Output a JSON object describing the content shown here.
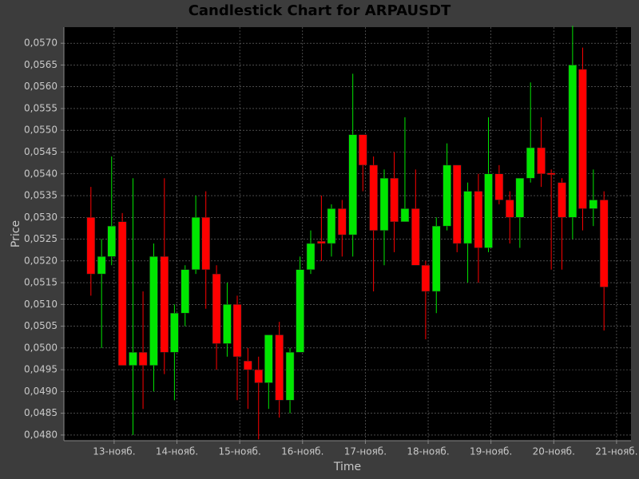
{
  "chart_data": {
    "type": "candlestick",
    "title": "Candlestick Chart for ARPAUSDT",
    "x_label": "Time",
    "y_label": "Price",
    "up_color": "#00e600",
    "down_color": "#ff0000",
    "grid": true,
    "xlim": [
      12.2,
      21.23
    ],
    "ylim": [
      0.04787,
      0.05737
    ],
    "xticks": [
      {
        "value": 13,
        "label": "13-нояб."
      },
      {
        "value": 14,
        "label": "14-нояб."
      },
      {
        "value": 15,
        "label": "15-нояб."
      },
      {
        "value": 16,
        "label": "16-нояб."
      },
      {
        "value": 17,
        "label": "17-нояб."
      },
      {
        "value": 18,
        "label": "18-нояб."
      },
      {
        "value": 19,
        "label": "19-нояб."
      },
      {
        "value": 20,
        "label": "20-нояб."
      },
      {
        "value": 21,
        "label": "21-нояб."
      }
    ],
    "yticks": [
      {
        "value": 0.048,
        "label": "0,0480"
      },
      {
        "value": 0.0485,
        "label": "0,0485"
      },
      {
        "value": 0.049,
        "label": "0,0490"
      },
      {
        "value": 0.0495,
        "label": "0,0495"
      },
      {
        "value": 0.05,
        "label": "0,0500"
      },
      {
        "value": 0.0505,
        "label": "0,0505"
      },
      {
        "value": 0.051,
        "label": "0,0510"
      },
      {
        "value": 0.0515,
        "label": "0,0515"
      },
      {
        "value": 0.052,
        "label": "0,0520"
      },
      {
        "value": 0.0525,
        "label": "0,0525"
      },
      {
        "value": 0.053,
        "label": "0,0530"
      },
      {
        "value": 0.0535,
        "label": "0,0535"
      },
      {
        "value": 0.054,
        "label": "0,0540"
      },
      {
        "value": 0.0545,
        "label": "0,0545"
      },
      {
        "value": 0.055,
        "label": "0,0550"
      },
      {
        "value": 0.0555,
        "label": "0,0555"
      },
      {
        "value": 0.056,
        "label": "0,0560"
      },
      {
        "value": 0.0565,
        "label": "0,0565"
      },
      {
        "value": 0.057,
        "label": "0,0570"
      }
    ],
    "x": [
      12.63,
      12.8,
      12.96,
      13.13,
      13.3,
      13.46,
      13.63,
      13.8,
      13.96,
      14.13,
      14.3,
      14.46,
      14.63,
      14.8,
      14.96,
      15.13,
      15.3,
      15.46,
      15.63,
      15.8,
      15.96,
      16.13,
      16.3,
      16.46,
      16.63,
      16.8,
      16.96,
      17.13,
      17.3,
      17.46,
      17.63,
      17.8,
      17.96,
      18.13,
      18.3,
      18.46,
      18.63,
      18.8,
      18.96,
      19.13,
      19.3,
      19.46,
      19.63,
      19.8,
      19.96,
      20.13,
      20.3,
      20.46,
      20.63,
      20.8
    ],
    "open": [
      0.053,
      0.0517,
      0.0521,
      0.0529,
      0.0496,
      0.0499,
      0.0496,
      0.0521,
      0.0499,
      0.0508,
      0.0518,
      0.053,
      0.0517,
      0.0501,
      0.051,
      0.0497,
      0.0495,
      0.0492,
      0.0503,
      0.0488,
      0.0499,
      0.0518,
      0.05245,
      0.0524,
      0.0532,
      0.0526,
      0.0549,
      0.0542,
      0.0527,
      0.0539,
      0.0529,
      0.0532,
      0.0519,
      0.0513,
      0.0528,
      0.0542,
      0.0524,
      0.0536,
      0.0523,
      0.054,
      0.0534,
      0.053,
      0.0539,
      0.0546,
      0.05402,
      0.0538,
      0.053,
      0.0564,
      0.0532,
      0.0534
    ],
    "high": [
      0.0537,
      0.0525,
      0.0544,
      0.0531,
      0.0539,
      0.0513,
      0.0524,
      0.0539,
      0.051,
      0.0519,
      0.0535,
      0.0536,
      0.0519,
      0.0515,
      0.0512,
      0.05,
      0.0498,
      0.0503,
      0.0506,
      0.05,
      0.0521,
      0.0527,
      0.0535,
      0.0533,
      0.0534,
      0.0563,
      0.0549,
      0.0544,
      0.0541,
      0.0545,
      0.0553,
      0.0541,
      0.052,
      0.053,
      0.0547,
      0.0542,
      0.0538,
      0.054,
      0.0553,
      0.0542,
      0.0536,
      0.0539,
      0.0561,
      0.0553,
      0.0541,
      0.0539,
      0.0574,
      0.0569,
      0.0541,
      0.0536
    ],
    "low": [
      0.0512,
      0.05,
      0.0519,
      0.0496,
      0.048,
      0.0486,
      0.049,
      0.0494,
      0.0488,
      0.0505,
      0.0517,
      0.0509,
      0.0495,
      0.0498,
      0.0488,
      0.0486,
      0.0479,
      0.0486,
      0.0484,
      0.0485,
      0.0499,
      0.0517,
      0.052,
      0.0521,
      0.0521,
      0.0521,
      0.0536,
      0.0513,
      0.0519,
      0.0522,
      0.0529,
      0.0519,
      0.0502,
      0.0508,
      0.0527,
      0.0522,
      0.0515,
      0.0515,
      0.0522,
      0.0533,
      0.0524,
      0.0523,
      0.0538,
      0.0537,
      0.0518,
      0.0518,
      0.0525,
      0.0527,
      0.0528,
      0.0504
    ],
    "close": [
      0.0517,
      0.0521,
      0.0528,
      0.0496,
      0.0499,
      0.0496,
      0.0521,
      0.0499,
      0.0508,
      0.0518,
      0.053,
      0.0518,
      0.0501,
      0.051,
      0.0498,
      0.0495,
      0.0492,
      0.0503,
      0.0488,
      0.0499,
      0.0518,
      0.0524,
      0.0524,
      0.0532,
      0.0526,
      0.0549,
      0.0542,
      0.0527,
      0.0539,
      0.0529,
      0.0532,
      0.0519,
      0.0513,
      0.0528,
      0.0542,
      0.0524,
      0.0536,
      0.0523,
      0.054,
      0.0534,
      0.053,
      0.0539,
      0.0546,
      0.054,
      0.05398,
      0.053,
      0.0565,
      0.0532,
      0.0534,
      0.0514
    ]
  }
}
